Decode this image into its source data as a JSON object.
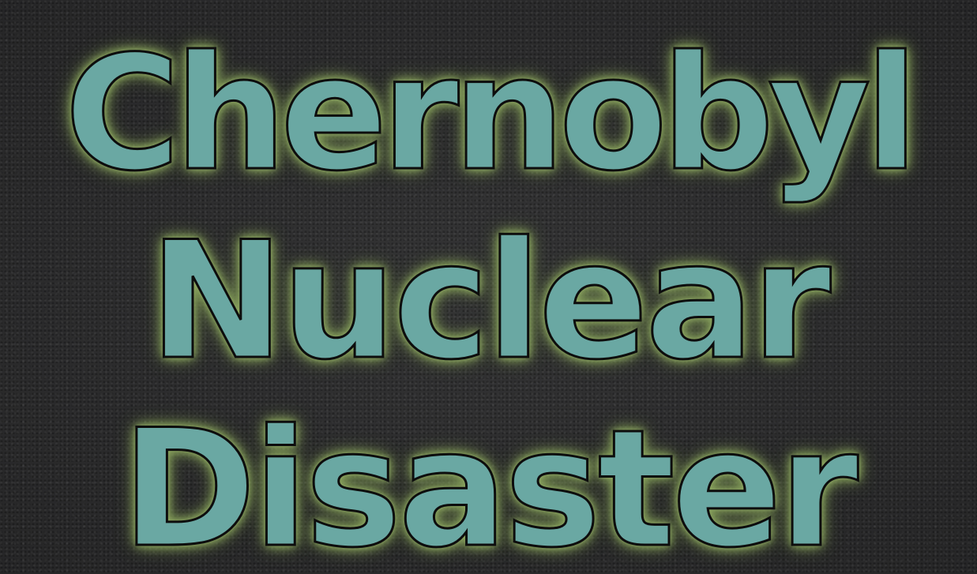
{
  "title": {
    "line1": "Chernobyl",
    "line2": "Nuclear",
    "line3": "Disaster"
  },
  "colors": {
    "background": "#2f2f30",
    "text_fill": "#6aa8a3",
    "text_outline": "#0d0d0d",
    "glow": "#8fa962"
  }
}
